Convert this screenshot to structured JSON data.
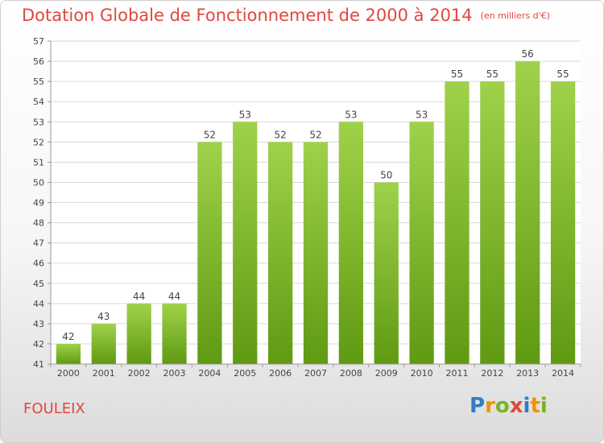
{
  "header": {
    "title": "Dotation Globale de Fonctionnement de 2000 à 2014",
    "subtitle": "(en milliers d'€)"
  },
  "footer": {
    "location": "FOULEIX",
    "logo_text": "Proxiti",
    "logo_letters": [
      {
        "ch": "P",
        "color": "#2f7fc1"
      },
      {
        "ch": "r",
        "color": "#f39200"
      },
      {
        "ch": "o",
        "color": "#7ab41d"
      },
      {
        "ch": "x",
        "color": "#e0473f"
      },
      {
        "ch": "i",
        "color": "#2f7fc1"
      },
      {
        "ch": "t",
        "color": "#f39200"
      },
      {
        "ch": "i",
        "color": "#7ab41d"
      }
    ]
  },
  "colors": {
    "bar_top": "#9fd24a",
    "bar_bottom": "#5f9a12",
    "accent": "#e0473f",
    "grid": "#d9d9d9"
  },
  "chart_data": {
    "type": "bar",
    "title": "Dotation Globale de Fonctionnement de 2000 à 2014",
    "subtitle": "(en milliers d'€)",
    "categories": [
      "2000",
      "2001",
      "2002",
      "2003",
      "2004",
      "2005",
      "2006",
      "2007",
      "2008",
      "2009",
      "2010",
      "2011",
      "2012",
      "2013",
      "2014"
    ],
    "values": [
      42,
      43,
      44,
      44,
      52,
      53,
      52,
      52,
      53,
      50,
      53,
      55,
      55,
      56,
      55
    ],
    "ylim": [
      41,
      57
    ],
    "yticks": [
      41,
      42,
      43,
      44,
      45,
      46,
      47,
      48,
      49,
      50,
      51,
      52,
      53,
      54,
      55,
      56,
      57
    ],
    "grid": true,
    "data_labels": true,
    "xlabel": "",
    "ylabel": ""
  }
}
